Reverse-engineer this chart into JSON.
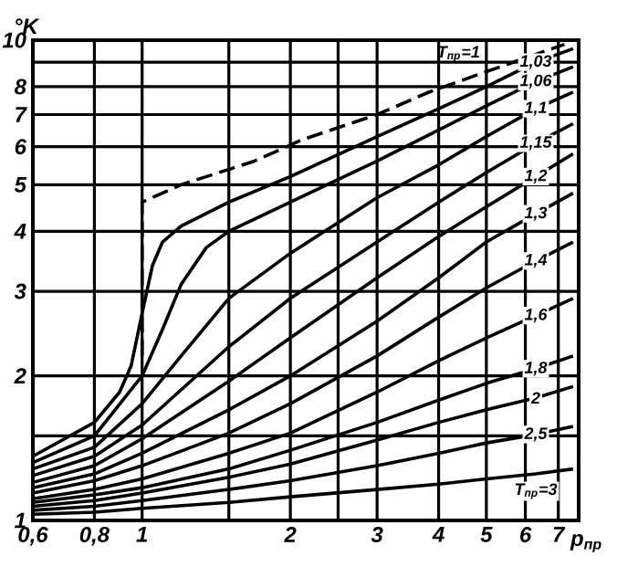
{
  "chart_data": {
    "type": "line",
    "xlabel": "p$_{пр}$",
    "ylabel": "°K",
    "log": "xy",
    "grid": true,
    "marker": "none",
    "xlim": [
      0.6,
      7.7
    ],
    "ylim": [
      1,
      10
    ],
    "xticks": [
      {
        "value": 0.6,
        "label": "0,6"
      },
      {
        "value": 0.8,
        "label": "0,8"
      },
      1,
      {
        "value": 1.5,
        "label": null
      },
      2,
      {
        "value": 2.5,
        "label": null
      },
      3,
      4,
      5,
      6,
      7
    ],
    "yticks": [
      1,
      {
        "value": 1.5,
        "label": null
      },
      2,
      3,
      4,
      5,
      6,
      7,
      8,
      {
        "value": 9,
        "label": null
      },
      10
    ],
    "x": [
      0.6,
      0.8,
      1,
      1.5,
      2,
      3,
      4,
      5,
      6.3,
      7.5
    ],
    "series": [
      {
        "name": "T$_{пр}$=1",
        "color": "#000000",
        "line_style": "dashed",
        "x": [
          1,
          1,
          1.2,
          1.69,
          2.11,
          3,
          3.83,
          5,
          7.2
        ],
        "values": [
          2.2,
          4.6,
          5.0,
          5.6,
          6.2,
          7.0,
          7.8,
          8.6,
          9.8
        ]
      },
      {
        "name": "1,03",
        "color": "#000000",
        "x": [
          0.6,
          0.8,
          0.9,
          0.95,
          1.0,
          1.05,
          1.1,
          1.2,
          1.5,
          2,
          3,
          4,
          5,
          6.3,
          7.5
        ],
        "values": [
          1.36,
          1.6,
          1.85,
          2.1,
          2.7,
          3.4,
          3.8,
          4.1,
          4.6,
          5.2,
          6.3,
          7.2,
          8.0,
          9.0,
          9.6
        ]
      },
      {
        "name": "1,06",
        "color": "#000000",
        "x": [
          0.6,
          0.8,
          1.0,
          1.1,
          1.2,
          1.35,
          1.5,
          2,
          3,
          4,
          5,
          6.3,
          7.5
        ],
        "values": [
          1.32,
          1.5,
          2.0,
          2.5,
          3.1,
          3.7,
          4.0,
          4.6,
          5.6,
          6.5,
          7.3,
          8.2,
          8.8
        ]
      },
      {
        "name": "1,1",
        "color": "#000000",
        "x": [
          0.6,
          0.8,
          1,
          1.2,
          1.5,
          2,
          3,
          4,
          5,
          6.3,
          7.5
        ],
        "values": [
          1.28,
          1.42,
          1.75,
          2.2,
          2.9,
          3.6,
          4.7,
          5.5,
          6.3,
          7.2,
          7.8
        ]
      },
      {
        "name": "1,15",
        "color": "#000000",
        "values": [
          1.24,
          1.36,
          1.58,
          2.3,
          2.9,
          3.8,
          4.6,
          5.3,
          6.1,
          6.7
        ]
      },
      {
        "name": "1,2",
        "color": "#000000",
        "values": [
          1.2,
          1.3,
          1.48,
          1.95,
          2.4,
          3.2,
          3.9,
          4.5,
          5.2,
          5.8
        ]
      },
      {
        "name": "1,3",
        "color": "#000000",
        "values": [
          1.17,
          1.25,
          1.38,
          1.7,
          2.0,
          2.6,
          3.2,
          3.8,
          4.35,
          4.8
        ]
      },
      {
        "name": "1,4",
        "color": "#000000",
        "values": [
          1.14,
          1.21,
          1.3,
          1.52,
          1.75,
          2.2,
          2.65,
          3.05,
          3.47,
          3.8
        ]
      },
      {
        "name": "1,6",
        "color": "#000000",
        "values": [
          1.11,
          1.16,
          1.22,
          1.38,
          1.52,
          1.85,
          2.15,
          2.4,
          2.67,
          2.9
        ]
      },
      {
        "name": "1,8",
        "color": "#000000",
        "values": [
          1.09,
          1.13,
          1.17,
          1.28,
          1.4,
          1.6,
          1.78,
          1.93,
          2.07,
          2.2
        ]
      },
      {
        "name": "2",
        "color": "#000000",
        "values": [
          1.07,
          1.1,
          1.14,
          1.23,
          1.31,
          1.47,
          1.6,
          1.7,
          1.8,
          1.9
        ]
      },
      {
        "name": "2,5",
        "color": "#000000",
        "values": [
          1.05,
          1.07,
          1.1,
          1.16,
          1.21,
          1.3,
          1.38,
          1.45,
          1.51,
          1.57
        ]
      },
      {
        "name": "T$_{пр}$=3",
        "color": "#000000",
        "values": [
          1.03,
          1.04,
          1.06,
          1.09,
          1.12,
          1.16,
          1.19,
          1.22,
          1.25,
          1.28
        ]
      }
    ]
  }
}
